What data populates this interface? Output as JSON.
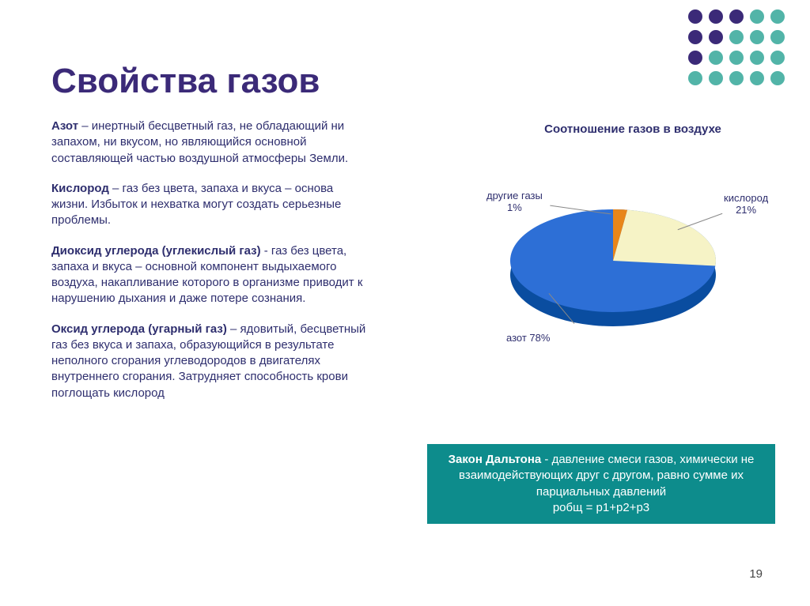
{
  "title": {
    "text": "Свойства газов",
    "color": "#3b2a78"
  },
  "decor_colors": [
    [
      "#3b2a78",
      "#3b2a78",
      "#3b2a78",
      "#52b4a8",
      "#52b4a8"
    ],
    [
      "#3b2a78",
      "#3b2a78",
      "#52b4a8",
      "#52b4a8",
      "#52b4a8"
    ],
    [
      "#3b2a78",
      "#52b4a8",
      "#52b4a8",
      "#52b4a8",
      "#52b4a8"
    ],
    [
      "#52b4a8",
      "#52b4a8",
      "#52b4a8",
      "#52b4a8",
      "#52b4a8"
    ]
  ],
  "paragraphs": [
    {
      "term": "Азот",
      "text": " – инертный бесцветный газ, не обладающий ни запахом, ни вкусом, но являющийся основной составляющей частью воздушной атмосферы Земли."
    },
    {
      "term": "Кислород",
      "text": " – газ без цвета, запаха и вкуса – основа жизни. Избыток и нехватка могут создать серьезные проблемы."
    },
    {
      "term": "Диоксид углерода (углекислый газ)",
      "text": " - газ без цвета, запаха и вкуса – основной компонент выдыхаемого воздуха, накапливание которого в организме приводит к нарушению дыхания и даже потере сознания."
    },
    {
      "term": "Оксид углерода (угарный газ)",
      "text": " – ядовитый, бесцветный газ без вкуса и запаха, образующийся в результате неполного сгорания углеводородов в двигателях внутреннего сгорания. Затрудняет способность крови поглощать кислород"
    }
  ],
  "chart": {
    "title": "Соотношение газов в воздухе",
    "type": "pie",
    "slices": [
      {
        "label": "азот 78%",
        "value": 78,
        "color": "#2d6fd6",
        "side_color": "#0a4da0"
      },
      {
        "label": "кислород",
        "sub": "21%",
        "value": 21,
        "color": "#f6f3c6",
        "side_color": "#c9c06b"
      },
      {
        "label": "другие газы",
        "sub": "1%",
        "value": 1,
        "color": "#e8861a"
      }
    ],
    "label_color": "#2e2e6e",
    "label_fontsize": 13
  },
  "law_box": {
    "bold": "Закон Дальтона",
    "text": " - давление смеси газов, химически не взаимодействующих друг с другом, равно сумме их парциальных давлений",
    "formula": "pобщ = p1+p2+p3",
    "background": "#0d8c8c",
    "text_color": "#ffffff"
  },
  "page_number": "19"
}
